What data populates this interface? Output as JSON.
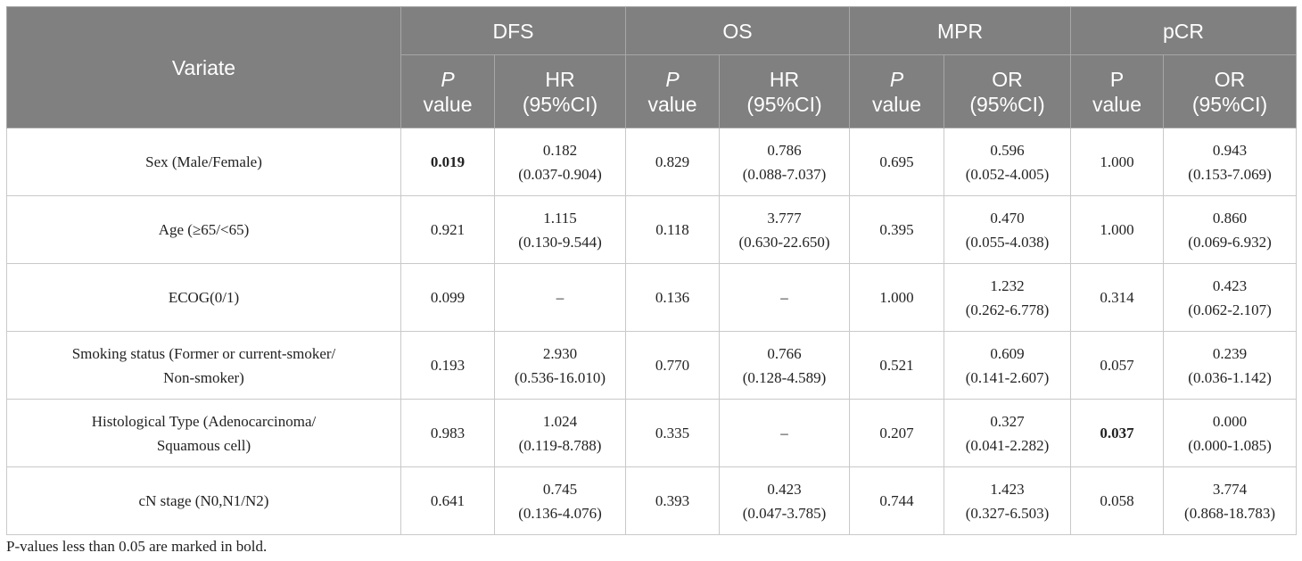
{
  "header": {
    "variate": "Variate",
    "groups": [
      "DFS",
      "OS",
      "MPR",
      "pCR"
    ],
    "sub": [
      {
        "l1": "P",
        "l2": "value"
      },
      {
        "l1": "HR",
        "l2": "(95%CI)"
      },
      {
        "l1": "P",
        "l2": "value"
      },
      {
        "l1": "HR",
        "l2": "(95%CI)"
      },
      {
        "l1": "P",
        "l2": "value"
      },
      {
        "l1": "OR",
        "l2": "(95%CI)"
      },
      {
        "l1": "P",
        "l2": "value"
      },
      {
        "l1": "OR",
        "l2": "(95%CI)"
      }
    ]
  },
  "rows": [
    {
      "variate": [
        "Sex (Male/Female)"
      ],
      "cells": [
        {
          "v": [
            "0.019"
          ],
          "bold": true
        },
        {
          "v": [
            "0.182",
            "(0.037-0.904)"
          ]
        },
        {
          "v": [
            "0.829"
          ]
        },
        {
          "v": [
            "0.786",
            "(0.088-7.037)"
          ]
        },
        {
          "v": [
            "0.695"
          ]
        },
        {
          "v": [
            "0.596",
            "(0.052-4.005)"
          ]
        },
        {
          "v": [
            "1.000"
          ]
        },
        {
          "v": [
            "0.943",
            "(0.153-7.069)"
          ]
        }
      ]
    },
    {
      "variate": [
        "Age (≥65/<65)"
      ],
      "cells": [
        {
          "v": [
            "0.921"
          ]
        },
        {
          "v": [
            "1.115",
            "(0.130-9.544)"
          ]
        },
        {
          "v": [
            "0.118"
          ]
        },
        {
          "v": [
            "3.777",
            "(0.630-22.650)"
          ]
        },
        {
          "v": [
            "0.395"
          ]
        },
        {
          "v": [
            "0.470",
            "(0.055-4.038)"
          ]
        },
        {
          "v": [
            "1.000"
          ]
        },
        {
          "v": [
            "0.860",
            "(0.069-6.932)"
          ]
        }
      ]
    },
    {
      "variate": [
        "ECOG(0/1)"
      ],
      "cells": [
        {
          "v": [
            "0.099"
          ]
        },
        {
          "v": [
            "–"
          ]
        },
        {
          "v": [
            "0.136"
          ]
        },
        {
          "v": [
            "–"
          ]
        },
        {
          "v": [
            "1.000"
          ]
        },
        {
          "v": [
            "1.232",
            "(0.262-6.778)"
          ]
        },
        {
          "v": [
            "0.314"
          ]
        },
        {
          "v": [
            "0.423",
            "(0.062-2.107)"
          ]
        }
      ]
    },
    {
      "variate": [
        "Smoking status (Former or current-smoker/",
        "Non-smoker)"
      ],
      "cells": [
        {
          "v": [
            "0.193"
          ]
        },
        {
          "v": [
            "2.930",
            "(0.536-16.010)"
          ]
        },
        {
          "v": [
            "0.770"
          ]
        },
        {
          "v": [
            "0.766",
            "(0.128-4.589)"
          ]
        },
        {
          "v": [
            "0.521"
          ]
        },
        {
          "v": [
            "0.609",
            "(0.141-2.607)"
          ]
        },
        {
          "v": [
            "0.057"
          ]
        },
        {
          "v": [
            "0.239",
            "(0.036-1.142)"
          ]
        }
      ]
    },
    {
      "variate": [
        "Histological Type (Adenocarcinoma/",
        "Squamous cell)"
      ],
      "cells": [
        {
          "v": [
            "0.983"
          ]
        },
        {
          "v": [
            "1.024",
            "(0.119-8.788)"
          ]
        },
        {
          "v": [
            "0.335"
          ]
        },
        {
          "v": [
            "–"
          ]
        },
        {
          "v": [
            "0.207"
          ]
        },
        {
          "v": [
            "0.327",
            "(0.041-2.282)"
          ]
        },
        {
          "v": [
            "0.037"
          ],
          "bold": true
        },
        {
          "v": [
            "0.000",
            "(0.000-1.085)"
          ]
        }
      ]
    },
    {
      "variate": [
        "cN stage (N0,N1/N2)"
      ],
      "cells": [
        {
          "v": [
            "0.641"
          ]
        },
        {
          "v": [
            "0.745",
            "(0.136-4.076)"
          ]
        },
        {
          "v": [
            "0.393"
          ]
        },
        {
          "v": [
            "0.423",
            "(0.047-3.785)"
          ]
        },
        {
          "v": [
            "0.744"
          ]
        },
        {
          "v": [
            "1.423",
            "(0.327-6.503)"
          ]
        },
        {
          "v": [
            "0.058"
          ]
        },
        {
          "v": [
            "3.774",
            "(0.868-18.783)"
          ]
        }
      ]
    }
  ],
  "footnote": "P-values less than 0.05 are marked in bold.",
  "colors": {
    "header_bg": "#808080",
    "header_text": "#ffffff",
    "border": "#c9c9c9"
  }
}
